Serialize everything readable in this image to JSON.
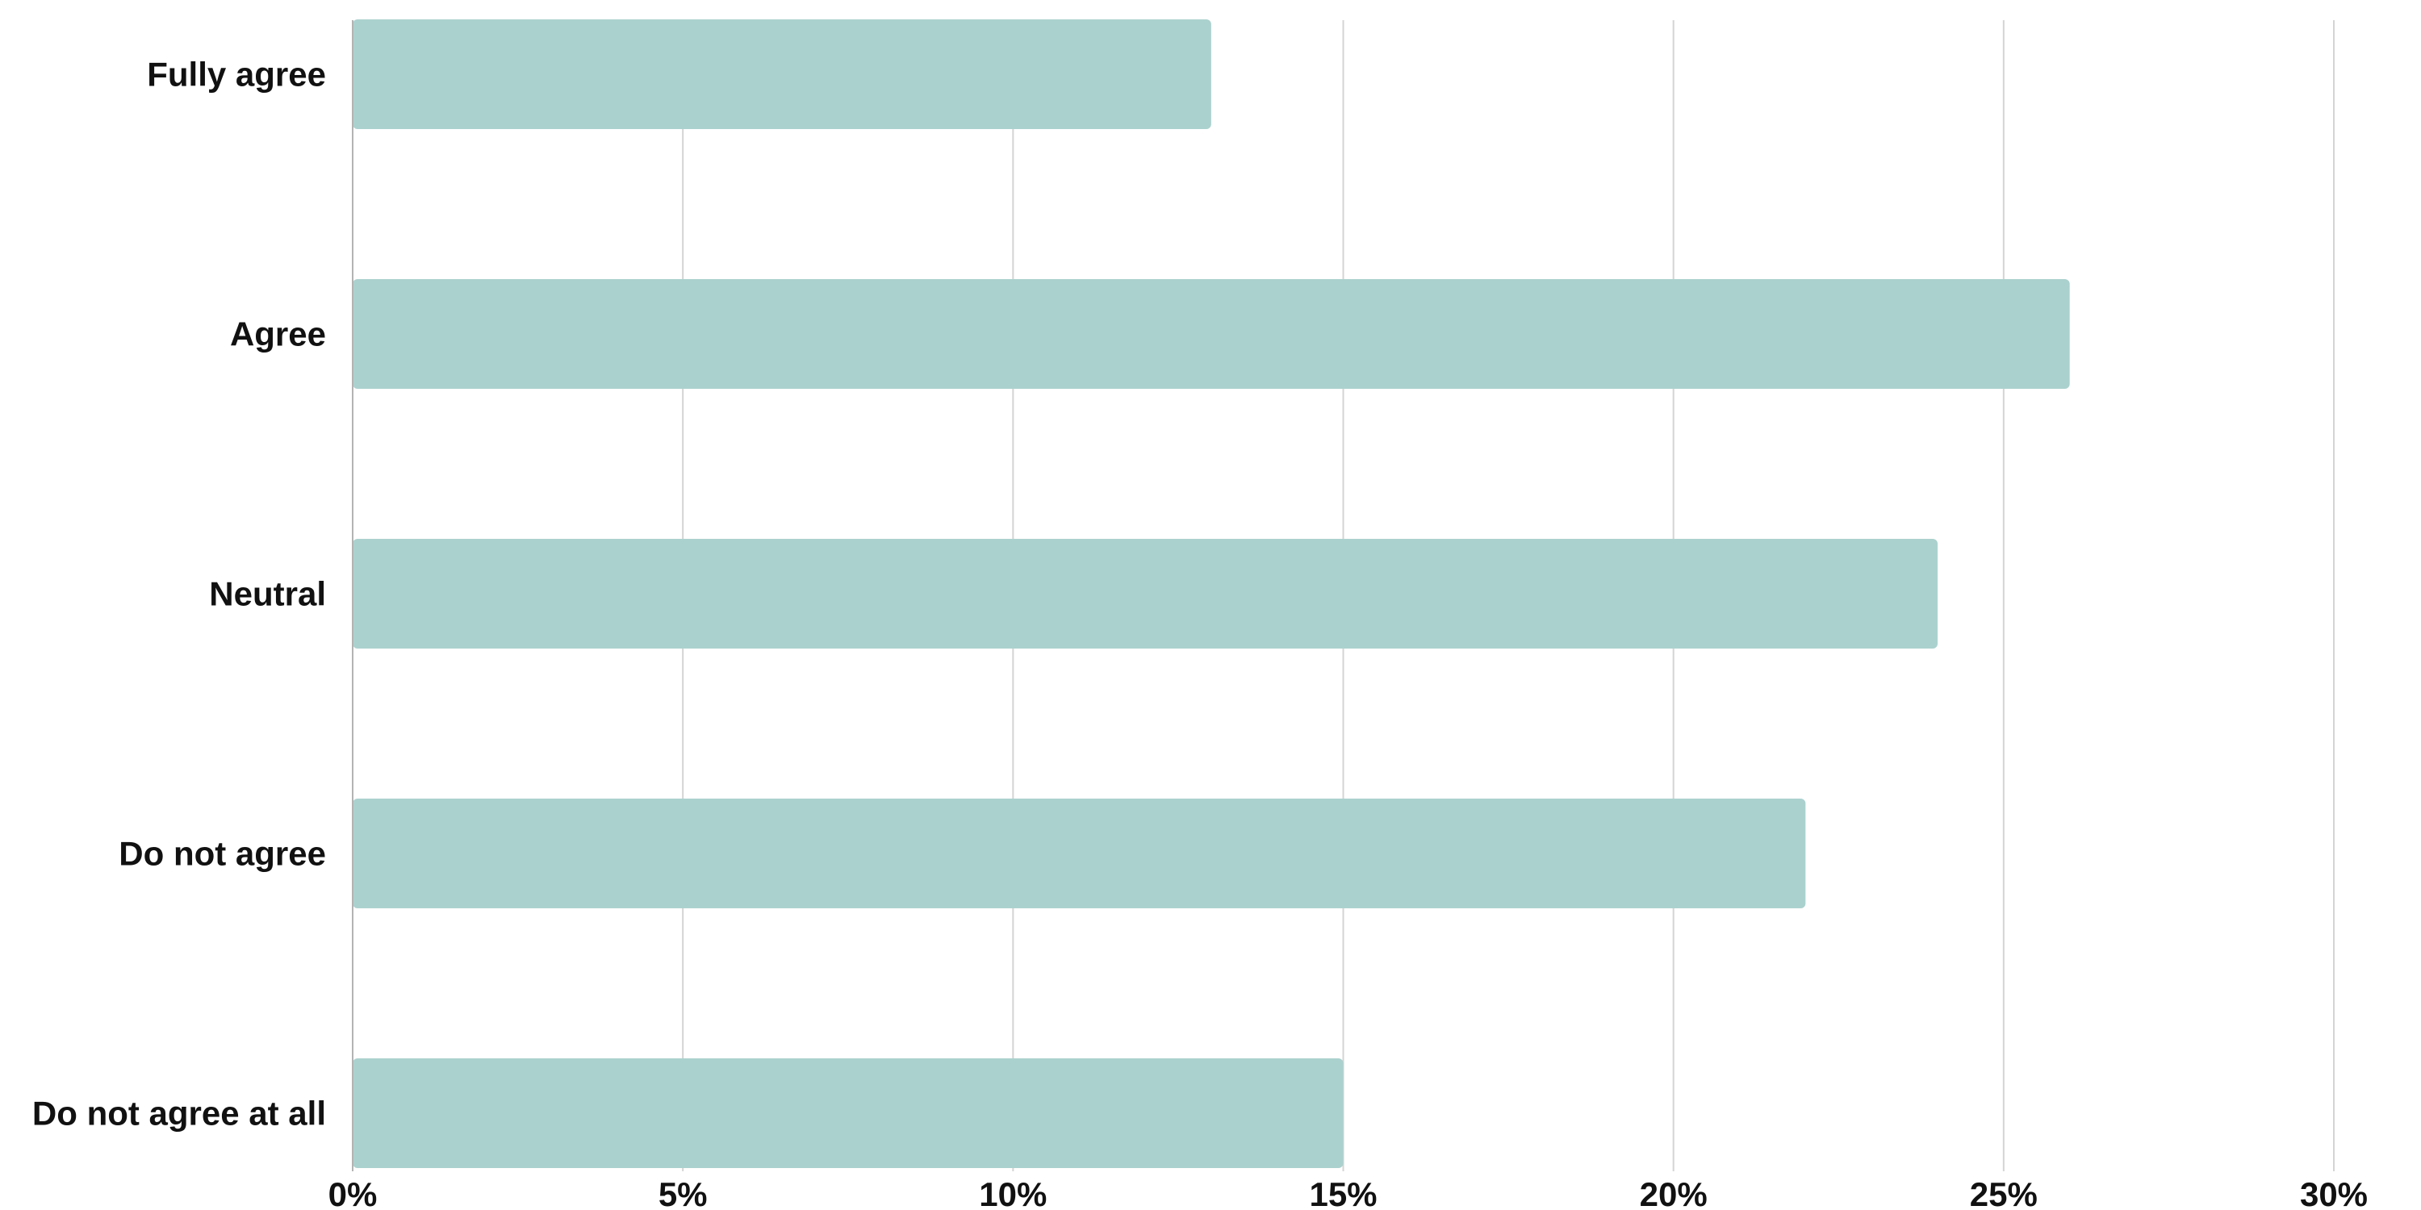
{
  "chart_data": {
    "type": "bar",
    "orientation": "horizontal",
    "categories": [
      "Fully agree",
      "Agree",
      "Neutral",
      "Do not agree",
      "Do not agree at all"
    ],
    "values": [
      13,
      26,
      24,
      22,
      15
    ],
    "value_unit": "%",
    "xlim": [
      0,
      30
    ],
    "xticks": [
      0,
      5,
      10,
      15,
      20,
      25,
      30
    ],
    "xtick_labels": [
      "0%",
      "5%",
      "10%",
      "15%",
      "20%",
      "25%",
      "30%"
    ],
    "title": "",
    "xlabel": "",
    "ylabel": "",
    "grid": "vertical",
    "legend": "none",
    "colors": {
      "bar": "#abd1ce",
      "grid": "#d4d4d4",
      "axis": "#b3b3b3",
      "text": "#111111"
    }
  }
}
